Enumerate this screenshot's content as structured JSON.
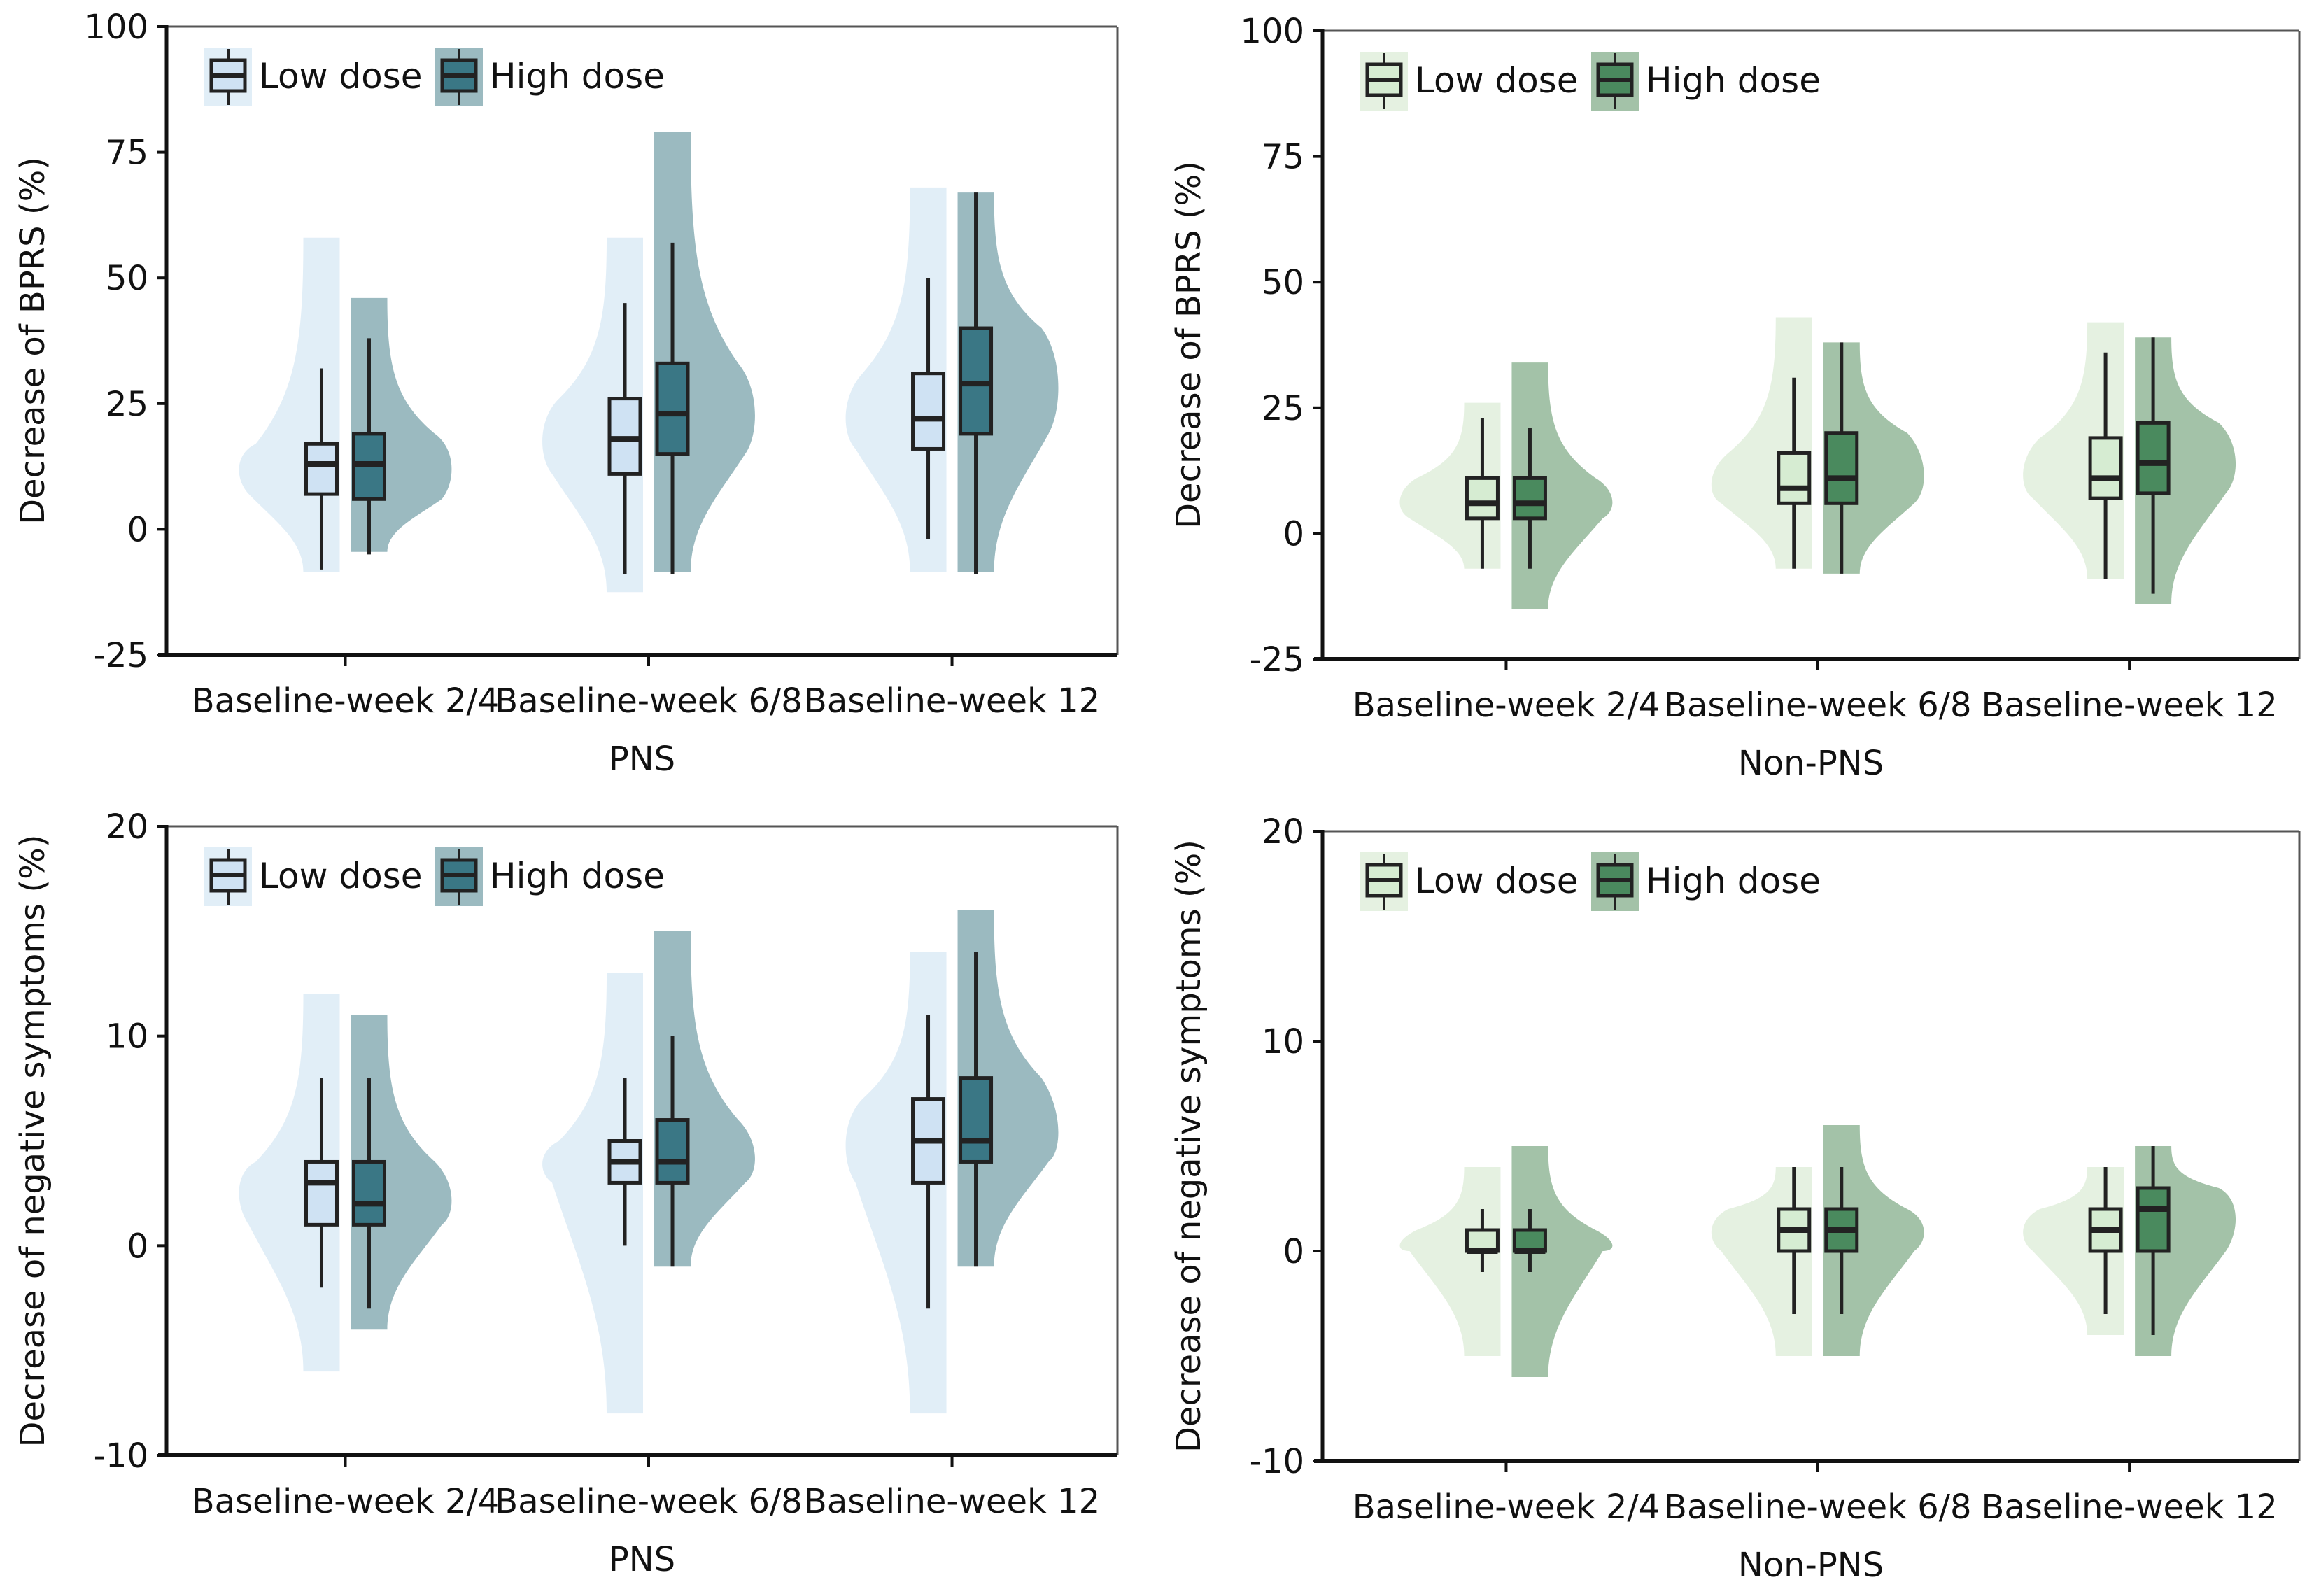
{
  "chart_data": [
    {
      "id": "pns-bprs",
      "type": "violin-box",
      "title": "",
      "group_label": "PNS",
      "xlabel": "PNS",
      "ylabel": "Decrease of BPRS (%)",
      "ylim": [
        -25,
        100
      ],
      "yticks": [
        -25,
        0,
        25,
        50,
        75,
        100
      ],
      "categories": [
        "Baseline-week 2/4",
        "Baseline-week 6/8",
        "Baseline-week 12"
      ],
      "legend": {
        "position": "top-left",
        "entries": [
          "Low dose",
          "High dose"
        ]
      },
      "grid": false,
      "series": [
        {
          "name": "Low dose",
          "box_color": "#cfe2f3",
          "violin_color": "#e1eef7",
          "data": [
            {
              "violin_max": 58,
              "violin_min": -8.5,
              "whisker_high": 32,
              "q3": 17,
              "median": 13,
              "q1": 7,
              "whisker_low": -8
            },
            {
              "violin_max": 58,
              "violin_min": -12.5,
              "whisker_high": 45,
              "q3": 26,
              "median": 18,
              "q1": 11,
              "whisker_low": -9
            },
            {
              "violin_max": 68,
              "violin_min": -8.5,
              "whisker_high": 50,
              "q3": 31,
              "median": 22,
              "q1": 16,
              "whisker_low": -2
            }
          ]
        },
        {
          "name": "High dose",
          "box_color": "#3a7785",
          "violin_color": "#9bbac0",
          "data": [
            {
              "violin_max": 46,
              "violin_min": -4.5,
              "whisker_high": 38,
              "q3": 19,
              "median": 13,
              "q1": 6,
              "whisker_low": -5
            },
            {
              "violin_max": 79,
              "violin_min": -8.5,
              "whisker_high": 57,
              "q3": 33,
              "median": 23,
              "q1": 15,
              "whisker_low": -9
            },
            {
              "violin_max": 67,
              "violin_min": -8.5,
              "whisker_high": 67,
              "q3": 40,
              "median": 29,
              "q1": 19,
              "whisker_low": -9
            }
          ]
        }
      ]
    },
    {
      "id": "nonpns-bprs",
      "type": "violin-box",
      "title": "",
      "group_label": "Non-PNS",
      "xlabel": "Non-PNS",
      "ylabel": "Decrease of BPRS (%)",
      "ylim": [
        -25,
        100
      ],
      "yticks": [
        -25,
        0,
        25,
        50,
        75,
        100
      ],
      "categories": [
        "Baseline-week 2/4",
        "Baseline-week 6/8",
        "Baseline-week 12"
      ],
      "legend": {
        "position": "top-left",
        "entries": [
          "Low dose",
          "High dose"
        ]
      },
      "grid": false,
      "series": [
        {
          "name": "Low dose",
          "box_color": "#d6ecd2",
          "violin_color": "#e5f1e1",
          "data": [
            {
              "violin_max": 26,
              "violin_min": -7,
              "whisker_high": 23,
              "q3": 11,
              "median": 6,
              "q1": 3,
              "whisker_low": -7
            },
            {
              "violin_max": 43,
              "violin_min": -7,
              "whisker_high": 31,
              "q3": 16,
              "median": 9,
              "q1": 6,
              "whisker_low": -7
            },
            {
              "violin_max": 42,
              "violin_min": -9,
              "whisker_high": 36,
              "q3": 19,
              "median": 11,
              "q1": 7,
              "whisker_low": -9
            }
          ]
        },
        {
          "name": "High dose",
          "box_color": "#4a8a5e",
          "violin_color": "#a3c2a8",
          "data": [
            {
              "violin_max": 34,
              "violin_min": -15,
              "whisker_high": 21,
              "q3": 11,
              "median": 6,
              "q1": 3,
              "whisker_low": -7
            },
            {
              "violin_max": 38,
              "violin_min": -8,
              "whisker_high": 38,
              "q3": 20,
              "median": 11,
              "q1": 6,
              "whisker_low": -8
            },
            {
              "violin_max": 39,
              "violin_min": -14,
              "whisker_high": 39,
              "q3": 22,
              "median": 14,
              "q1": 8,
              "whisker_low": -12
            }
          ]
        }
      ]
    },
    {
      "id": "pns-negative",
      "type": "violin-box",
      "title": "",
      "group_label": "PNS",
      "xlabel": "PNS",
      "ylabel": "Decrease of negative symptoms (%)",
      "ylim": [
        -10,
        20
      ],
      "yticks": [
        -10,
        0,
        10,
        20
      ],
      "categories": [
        "Baseline-week 2/4",
        "Baseline-week 6/8",
        "Baseline-week 12"
      ],
      "legend": {
        "position": "top-left",
        "entries": [
          "Low dose",
          "High dose"
        ]
      },
      "grid": false,
      "series": [
        {
          "name": "Low dose",
          "box_color": "#cfe2f3",
          "violin_color": "#e1eef7",
          "data": [
            {
              "violin_max": 12,
              "violin_min": -6,
              "whisker_high": 8,
              "q3": 4,
              "median": 3,
              "q1": 1,
              "whisker_low": -2
            },
            {
              "violin_max": 13,
              "violin_min": -8,
              "whisker_high": 8,
              "q3": 5,
              "median": 4,
              "q1": 3,
              "whisker_low": 0
            },
            {
              "violin_max": 14,
              "violin_min": -8,
              "whisker_high": 11,
              "q3": 7,
              "median": 5,
              "q1": 3,
              "whisker_low": -3
            }
          ]
        },
        {
          "name": "High dose",
          "box_color": "#3a7785",
          "violin_color": "#9bbac0",
          "data": [
            {
              "violin_max": 11,
              "violin_min": -4,
              "whisker_high": 8,
              "q3": 4,
              "median": 2,
              "q1": 1,
              "whisker_low": -3
            },
            {
              "violin_max": 15,
              "violin_min": -1,
              "whisker_high": 10,
              "q3": 6,
              "median": 4,
              "q1": 3,
              "whisker_low": -1
            },
            {
              "violin_max": 16,
              "violin_min": -1,
              "whisker_high": 14,
              "q3": 8,
              "median": 5,
              "q1": 4,
              "whisker_low": -1
            }
          ]
        }
      ]
    },
    {
      "id": "nonpns-negative",
      "type": "violin-box",
      "title": "",
      "group_label": "Non-PNS",
      "xlabel": "Non-PNS",
      "ylabel": "Decrease of negative symptoms (%)",
      "ylim": [
        -10,
        20
      ],
      "yticks": [
        -10,
        0,
        10,
        20
      ],
      "categories": [
        "Baseline-week 2/4",
        "Baseline-week 6/8",
        "Baseline-week 12"
      ],
      "legend": {
        "position": "top-left",
        "entries": [
          "Low dose",
          "High dose"
        ]
      },
      "grid": false,
      "series": [
        {
          "name": "Low dose",
          "box_color": "#d6ecd2",
          "violin_color": "#e5f1e1",
          "data": [
            {
              "violin_max": 4,
              "violin_min": -5,
              "whisker_high": 2,
              "q3": 1,
              "median": 0,
              "q1": 0,
              "whisker_low": -1
            },
            {
              "violin_max": 4,
              "violin_min": -5,
              "whisker_high": 4,
              "q3": 2,
              "median": 1,
              "q1": 0,
              "whisker_low": -3
            },
            {
              "violin_max": 4,
              "violin_min": -4,
              "whisker_high": 4,
              "q3": 2,
              "median": 1,
              "q1": 0,
              "whisker_low": -3
            }
          ]
        },
        {
          "name": "High dose",
          "box_color": "#4a8a5e",
          "violin_color": "#a3c2a8",
          "data": [
            {
              "violin_max": 5,
              "violin_min": -6,
              "whisker_high": 2,
              "q3": 1,
              "median": 0,
              "q1": 0,
              "whisker_low": -1
            },
            {
              "violin_max": 6,
              "violin_min": -5,
              "whisker_high": 4,
              "q3": 2,
              "median": 1,
              "q1": 0,
              "whisker_low": -3
            },
            {
              "violin_max": 5,
              "violin_min": -5,
              "whisker_high": 5,
              "q3": 3,
              "median": 2,
              "q1": 0,
              "whisker_low": -4
            }
          ]
        }
      ]
    }
  ]
}
